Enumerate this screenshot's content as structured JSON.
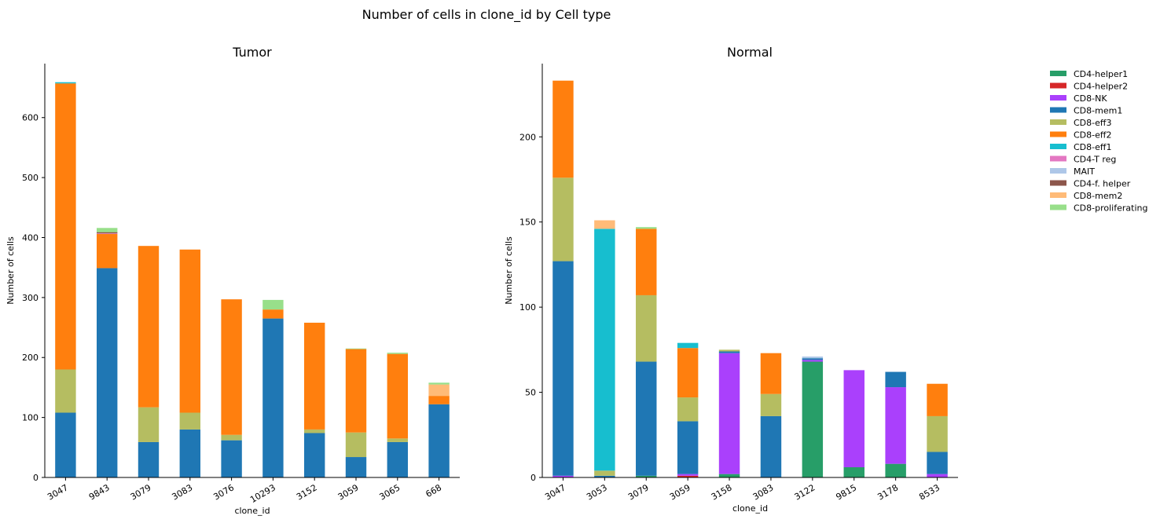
{
  "figure_title": "Number of cells in clone_id by Cell type",
  "colors": {
    "CD4-helper1": "#279e68",
    "CD4-helper2": "#d62728",
    "CD8-NK": "#aa40fc",
    "CD8-mem1": "#1f77b4",
    "CD8-eff3": "#b5bd61",
    "CD8-eff2": "#ff7f0e",
    "CD8-eff1": "#17becf",
    "CD4-T reg": "#e377c2",
    "MAIT": "#aec7e8",
    "CD4-f. helper": "#8c564b",
    "CD8-mem2": "#ffbb78",
    "CD8-proliferating": "#98df8a"
  },
  "legend": {
    "placement": "right-outside",
    "items": [
      "CD4-helper1",
      "CD4-helper2",
      "CD8-NK",
      "CD8-mem1",
      "CD8-eff3",
      "CD8-eff2",
      "CD8-eff1",
      "CD4-T reg",
      "MAIT",
      "CD4-f. helper",
      "CD8-mem2",
      "CD8-proliferating"
    ]
  },
  "chart_data": [
    {
      "type": "bar",
      "stacked": true,
      "title": "Tumor",
      "xlabel": "clone_id",
      "ylabel": "Number of cells",
      "ylim": [
        0,
        690
      ],
      "yticks": [
        0,
        100,
        200,
        300,
        400,
        500,
        600
      ],
      "grid": false,
      "categories": [
        "3047",
        "9843",
        "3079",
        "3083",
        "3076",
        "10293",
        "3152",
        "3059",
        "3065",
        "668"
      ],
      "series": [
        {
          "name": "CD4-helper1",
          "values": [
            0,
            0,
            0,
            0,
            0,
            0,
            0,
            0,
            0,
            0
          ]
        },
        {
          "name": "CD4-helper2",
          "values": [
            0,
            0,
            0,
            0,
            0,
            0,
            0,
            0,
            0,
            0
          ]
        },
        {
          "name": "CD8-NK",
          "values": [
            0,
            0,
            0,
            0,
            0,
            0,
            0,
            0,
            0,
            0
          ]
        },
        {
          "name": "CD8-mem1",
          "values": [
            108,
            349,
            59,
            80,
            62,
            265,
            74,
            34,
            59,
            122
          ]
        },
        {
          "name": "CD8-eff3",
          "values": [
            72,
            0,
            58,
            28,
            9,
            0,
            6,
            41,
            6,
            0
          ]
        },
        {
          "name": "CD8-eff2",
          "values": [
            477,
            57,
            269,
            272,
            226,
            15,
            178,
            139,
            141,
            14
          ]
        },
        {
          "name": "CD8-eff1",
          "values": [
            2,
            0,
            0,
            0,
            0,
            0,
            0,
            0,
            0,
            0
          ]
        },
        {
          "name": "CD4-T reg",
          "values": [
            0,
            1,
            0,
            0,
            0,
            0,
            0,
            0,
            0,
            0
          ]
        },
        {
          "name": "MAIT",
          "values": [
            0,
            0,
            0,
            0,
            0,
            0,
            0,
            0,
            0,
            0
          ]
        },
        {
          "name": "CD4-f. helper",
          "values": [
            0,
            2,
            0,
            0,
            0,
            0,
            0,
            0,
            0,
            0
          ]
        },
        {
          "name": "CD8-mem2",
          "values": [
            0,
            0,
            0,
            0,
            0,
            0,
            0,
            0,
            0,
            19
          ]
        },
        {
          "name": "CD8-proliferating",
          "values": [
            0,
            7,
            0,
            0,
            0,
            16,
            0,
            1,
            2,
            3
          ]
        }
      ]
    },
    {
      "type": "bar",
      "stacked": true,
      "title": "Normal",
      "xlabel": "clone_id",
      "ylabel": "Number of cells",
      "ylim": [
        0,
        243
      ],
      "yticks": [
        0,
        50,
        100,
        150,
        200
      ],
      "grid": false,
      "categories": [
        "3047",
        "3053",
        "3079",
        "3059",
        "3158",
        "3083",
        "3122",
        "9815",
        "3178",
        "8533"
      ],
      "series": [
        {
          "name": "CD4-helper1",
          "values": [
            0,
            0,
            1,
            0,
            2,
            0,
            68,
            6,
            8,
            0
          ]
        },
        {
          "name": "CD4-helper2",
          "values": [
            0,
            0,
            0,
            1,
            0,
            0,
            0,
            0,
            0,
            0
          ]
        },
        {
          "name": "CD8-NK",
          "values": [
            1,
            0,
            0,
            1,
            71,
            0,
            1,
            57,
            45,
            2
          ]
        },
        {
          "name": "CD8-mem1",
          "values": [
            126,
            1,
            67,
            31,
            1,
            36,
            1,
            0,
            9,
            13
          ]
        },
        {
          "name": "CD8-eff3",
          "values": [
            49,
            3,
            39,
            14,
            1,
            13,
            0,
            0,
            0,
            21
          ]
        },
        {
          "name": "CD8-eff2",
          "values": [
            57,
            0,
            39,
            29,
            0,
            24,
            0,
            0,
            0,
            19
          ]
        },
        {
          "name": "CD8-eff1",
          "values": [
            0,
            142,
            0,
            3,
            0,
            0,
            0,
            0,
            0,
            0
          ]
        },
        {
          "name": "CD4-T reg",
          "values": [
            0,
            0,
            0,
            0,
            0,
            0,
            0,
            0,
            0,
            0
          ]
        },
        {
          "name": "MAIT",
          "values": [
            0,
            0,
            0,
            0,
            0,
            0,
            1,
            0,
            0,
            0
          ]
        },
        {
          "name": "CD4-f. helper",
          "values": [
            0,
            0,
            0,
            0,
            0,
            0,
            0,
            0,
            0,
            0
          ]
        },
        {
          "name": "CD8-mem2",
          "values": [
            0,
            5,
            0,
            0,
            0,
            0,
            0,
            0,
            0,
            0
          ]
        },
        {
          "name": "CD8-proliferating",
          "values": [
            0,
            0,
            1,
            0,
            0,
            0,
            0,
            0,
            0,
            0
          ]
        }
      ]
    }
  ]
}
